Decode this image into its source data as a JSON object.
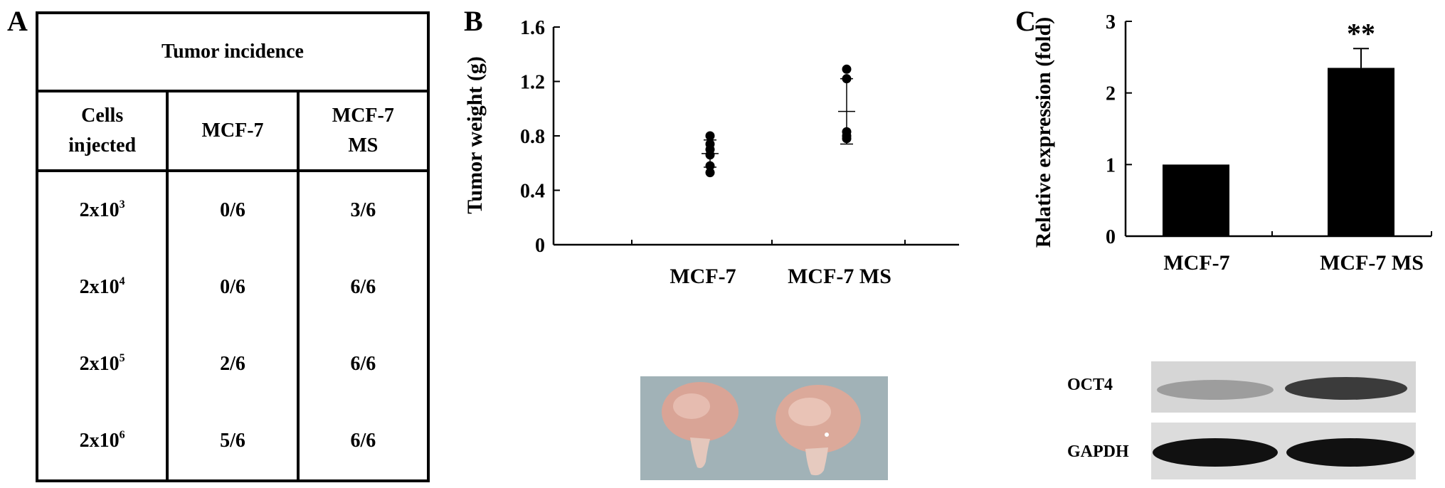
{
  "panel_a": {
    "letter": "A",
    "title": "Tumor incidence",
    "headers": {
      "cells": [
        "Cells",
        "injected"
      ],
      "col2": "MCF-7",
      "col3": [
        "MCF-7",
        "MS"
      ]
    },
    "rows": [
      {
        "base": "2x10",
        "exp": "3",
        "mcf7": "0/6",
        "mcf7ms": "3/6"
      },
      {
        "base": "2x10",
        "exp": "4",
        "mcf7": "0/6",
        "mcf7ms": "6/6"
      },
      {
        "base": "2x10",
        "exp": "5",
        "mcf7": "2/6",
        "mcf7ms": "6/6"
      },
      {
        "base": "2x10",
        "exp": "6",
        "mcf7": "5/6",
        "mcf7ms": "6/6"
      }
    ]
  },
  "panel_b": {
    "letter": "B"
  },
  "panel_c": {
    "letter": "C",
    "blot_labels": [
      "OCT4",
      "GAPDH"
    ],
    "colors": {
      "bar": "#000000",
      "blot_bg": "#dcdcdc",
      "photo_bg": "#9fb0b6",
      "tumor": "#d9a496"
    }
  },
  "chart_data": [
    {
      "type": "scatter",
      "title": "",
      "xlabel": "",
      "ylabel": "Tumor weight (g)",
      "categories": [
        "MCF-7",
        "MCF-7 MS"
      ],
      "ylim": [
        0,
        1.6
      ],
      "yticks": [
        "0",
        "0.4",
        "0.8",
        "1.2",
        "1.6"
      ],
      "ytick_values": [
        0,
        0.4,
        0.8,
        1.2,
        1.6
      ],
      "points": [
        {
          "category": "MCF-7",
          "values": [
            0.8,
            0.74,
            0.7,
            0.66,
            0.58,
            0.53
          ]
        },
        {
          "category": "MCF-7 MS",
          "values": [
            1.29,
            1.22,
            0.83,
            0.8,
            0.78
          ]
        }
      ],
      "mean": [
        0.67,
        0.98
      ],
      "error": [
        0.1,
        0.24
      ]
    },
    {
      "type": "bar",
      "title": "",
      "xlabel": "",
      "ylabel": "Relative expression (fold)",
      "categories": [
        "MCF-7",
        "MCF-7 MS"
      ],
      "values": [
        1.0,
        2.35
      ],
      "error": [
        0,
        0.27
      ],
      "annotations": [
        "",
        "**"
      ],
      "ylim": [
        0,
        3
      ],
      "yticks": [
        "0",
        "1",
        "2",
        "3"
      ],
      "ytick_values": [
        0,
        1,
        2,
        3
      ]
    }
  ]
}
